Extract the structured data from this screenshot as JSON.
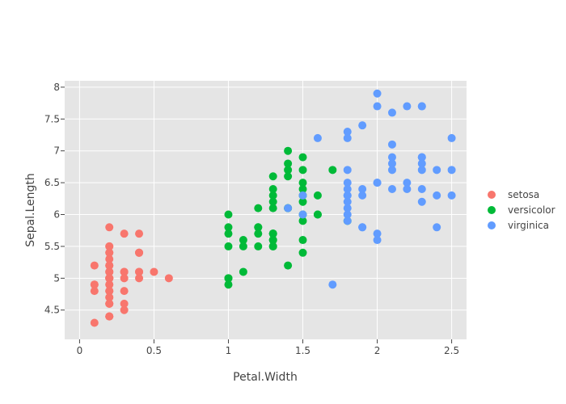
{
  "chart_data": {
    "type": "scatter",
    "xlabel": "Petal.Width",
    "ylabel": "Sepal.Length",
    "xlim": [
      -0.1,
      2.6
    ],
    "ylim": [
      4.04,
      8.1
    ],
    "xticks": [
      0,
      0.5,
      1,
      1.5,
      2,
      2.5
    ],
    "xtick_labels": [
      "0",
      "0.5",
      "1",
      "1.5",
      "2",
      "2.5"
    ],
    "yticks": [
      4.5,
      5,
      5.5,
      6,
      6.5,
      7,
      7.5,
      8
    ],
    "ytick_labels": [
      "4.5",
      "5",
      "5.5",
      "6",
      "6.5",
      "7",
      "7.5",
      "8"
    ],
    "grid": true,
    "legend_position": "right",
    "plot_background": "#e5e5e5",
    "series": [
      {
        "name": "setosa",
        "color": "#f8766d",
        "x": [
          0.2,
          0.2,
          0.2,
          0.2,
          0.2,
          0.4,
          0.3,
          0.2,
          0.2,
          0.1,
          0.2,
          0.2,
          0.1,
          0.1,
          0.2,
          0.4,
          0.4,
          0.3,
          0.3,
          0.3,
          0.2,
          0.4,
          0.2,
          0.5,
          0.2,
          0.2,
          0.4,
          0.2,
          0.2,
          0.2,
          0.2,
          0.4,
          0.1,
          0.2,
          0.2,
          0.2,
          0.2,
          0.1,
          0.2,
          0.2,
          0.3,
          0.3,
          0.2,
          0.6,
          0.4,
          0.3,
          0.2,
          0.2,
          0.2,
          0.2
        ],
        "y": [
          5.1,
          4.9,
          4.7,
          4.6,
          5.0,
          5.4,
          4.6,
          5.0,
          4.4,
          4.9,
          5.4,
          4.8,
          4.8,
          4.3,
          5.8,
          5.7,
          5.4,
          5.1,
          5.7,
          5.1,
          5.4,
          5.1,
          4.6,
          5.1,
          4.8,
          5.0,
          5.0,
          5.2,
          5.2,
          4.7,
          4.8,
          5.4,
          5.2,
          5.5,
          4.9,
          5.0,
          5.5,
          4.9,
          4.4,
          5.1,
          5.0,
          4.5,
          4.4,
          5.0,
          5.1,
          4.8,
          5.1,
          4.6,
          5.3,
          5.0
        ]
      },
      {
        "name": "versicolor",
        "color": "#00ba38",
        "x": [
          1.4,
          1.5,
          1.5,
          1.3,
          1.5,
          1.3,
          1.6,
          1.0,
          1.3,
          1.4,
          1.0,
          1.5,
          1.0,
          1.4,
          1.3,
          1.4,
          1.5,
          1.0,
          1.5,
          1.1,
          1.8,
          1.3,
          1.5,
          1.2,
          1.3,
          1.4,
          1.4,
          1.7,
          1.5,
          1.0,
          1.1,
          1.0,
          1.2,
          1.6,
          1.5,
          1.6,
          1.5,
          1.3,
          1.3,
          1.3,
          1.2,
          1.4,
          1.2,
          1.0,
          1.3,
          1.2,
          1.3,
          1.3,
          1.1,
          1.3
        ],
        "y": [
          7.0,
          6.4,
          6.9,
          5.5,
          6.5,
          5.7,
          6.3,
          4.9,
          6.6,
          5.2,
          5.0,
          5.9,
          6.0,
          6.1,
          5.6,
          6.7,
          5.6,
          5.8,
          6.2,
          5.6,
          5.9,
          6.1,
          6.3,
          6.1,
          6.4,
          6.6,
          6.8,
          6.7,
          6.0,
          5.7,
          5.5,
          5.5,
          5.8,
          6.0,
          5.4,
          6.0,
          6.7,
          6.3,
          5.6,
          5.5,
          5.5,
          6.1,
          5.8,
          5.0,
          5.6,
          5.7,
          5.7,
          6.2,
          5.1,
          5.7
        ]
      },
      {
        "name": "virginica",
        "color": "#619cff",
        "x": [
          2.5,
          1.9,
          2.1,
          1.8,
          2.2,
          2.1,
          1.7,
          1.8,
          1.8,
          2.5,
          2.0,
          1.9,
          2.1,
          2.0,
          2.4,
          2.3,
          1.8,
          2.2,
          2.3,
          1.5,
          2.3,
          2.0,
          2.0,
          1.8,
          2.1,
          1.8,
          1.8,
          1.8,
          2.1,
          1.6,
          1.9,
          2.0,
          2.2,
          1.5,
          1.4,
          2.3,
          2.4,
          1.8,
          1.8,
          2.1,
          2.4,
          2.3,
          1.9,
          2.3,
          2.5,
          2.3,
          1.9,
          2.0,
          2.3,
          1.8
        ],
        "y": [
          6.3,
          5.8,
          7.1,
          6.3,
          6.5,
          7.6,
          4.9,
          7.3,
          6.7,
          7.2,
          6.5,
          6.4,
          6.8,
          5.7,
          5.8,
          6.4,
          6.5,
          7.7,
          7.7,
          6.0,
          6.9,
          5.6,
          7.7,
          6.3,
          6.7,
          7.2,
          6.2,
          6.1,
          6.4,
          7.2,
          7.4,
          7.9,
          6.4,
          6.3,
          6.1,
          7.7,
          6.3,
          6.4,
          6.0,
          6.9,
          6.7,
          6.9,
          5.8,
          6.8,
          6.7,
          6.7,
          6.3,
          6.5,
          6.2,
          5.9
        ]
      }
    ]
  }
}
